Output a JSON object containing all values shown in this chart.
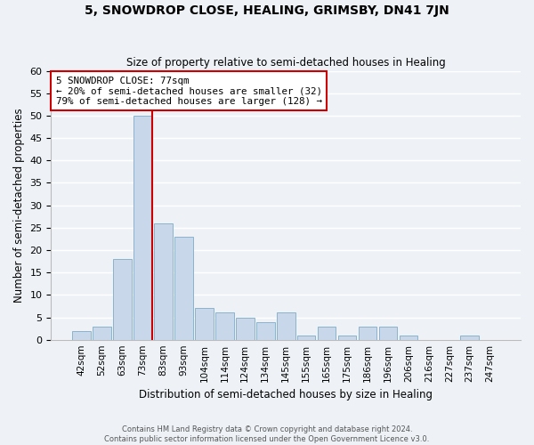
{
  "title": "5, SNOWDROP CLOSE, HEALING, GRIMSBY, DN41 7JN",
  "subtitle": "Size of property relative to semi-detached houses in Healing",
  "xlabel": "Distribution of semi-detached houses by size in Healing",
  "ylabel": "Number of semi-detached properties",
  "bar_labels": [
    "42sqm",
    "52sqm",
    "63sqm",
    "73sqm",
    "83sqm",
    "93sqm",
    "104sqm",
    "114sqm",
    "124sqm",
    "134sqm",
    "145sqm",
    "155sqm",
    "165sqm",
    "175sqm",
    "186sqm",
    "196sqm",
    "206sqm",
    "216sqm",
    "227sqm",
    "237sqm",
    "247sqm"
  ],
  "bar_values": [
    2,
    3,
    18,
    50,
    26,
    23,
    7,
    6,
    5,
    4,
    6,
    1,
    3,
    1,
    3,
    3,
    1,
    0,
    0,
    1,
    0
  ],
  "bar_color": "#c8d8ea",
  "bar_edge_color": "#8ab4cc",
  "ylim": [
    0,
    60
  ],
  "yticks": [
    0,
    5,
    10,
    15,
    20,
    25,
    30,
    35,
    40,
    45,
    50,
    55,
    60
  ],
  "vline_color": "#cc0000",
  "annotation_title": "5 SNOWDROP CLOSE: 77sqm",
  "annotation_line1": "← 20% of semi-detached houses are smaller (32)",
  "annotation_line2": "79% of semi-detached houses are larger (128) →",
  "annotation_box_color": "#ffffff",
  "annotation_box_edge": "#cc0000",
  "footer1": "Contains HM Land Registry data © Crown copyright and database right 2024.",
  "footer2": "Contains public sector information licensed under the Open Government Licence v3.0.",
  "background_color": "#eef2f7",
  "grid_color": "#ffffff"
}
